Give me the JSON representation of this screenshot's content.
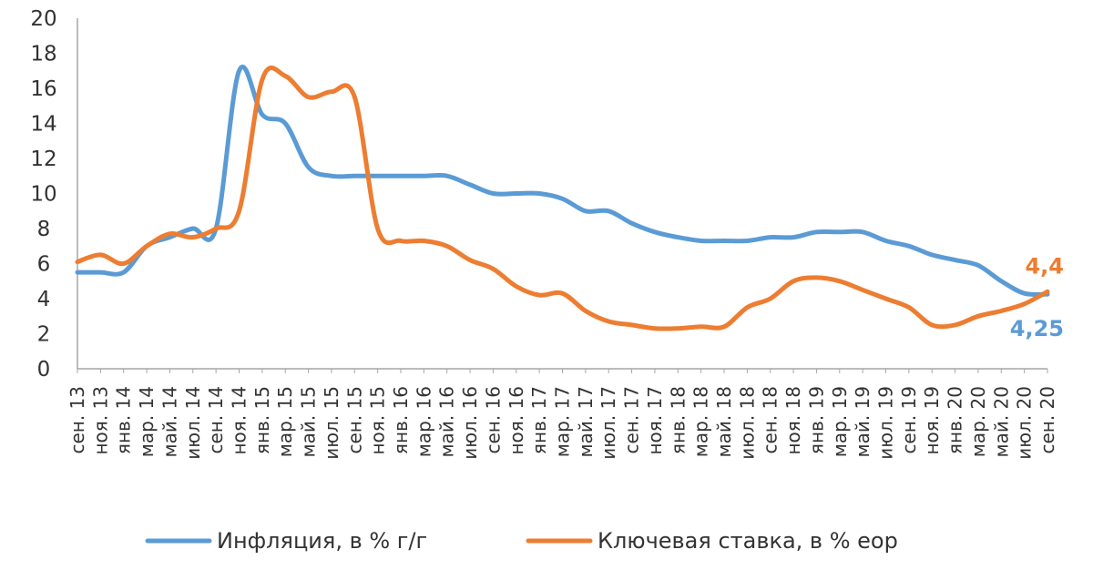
{
  "chart_data": {
    "type": "line",
    "title": "",
    "xlabel": "",
    "ylabel": "",
    "ylim": [
      0,
      20
    ],
    "yticks": [
      "0",
      "2",
      "4",
      "6",
      "8",
      "10",
      "12",
      "14",
      "16",
      "18",
      "20"
    ],
    "grid": false,
    "legend_position": "bottom",
    "x_labels": [
      "сен. 13",
      "ноя. 13",
      "янв. 14",
      "мар. 14",
      "май. 14",
      "июл. 14",
      "сен. 14",
      "ноя. 14",
      "янв. 15",
      "мар. 15",
      "май. 15",
      "июл. 15",
      "сен. 15",
      "ноя. 15",
      "янв. 16",
      "мар. 16",
      "май. 16",
      "июл. 16",
      "сен. 16",
      "ноя. 16",
      "янв. 17",
      "мар. 17",
      "май. 17",
      "июл. 17",
      "сен. 17",
      "ноя. 17",
      "янв. 18",
      "мар. 18",
      "май. 18",
      "июл. 18",
      "сен. 18",
      "ноя. 18",
      "янв. 19",
      "мар. 19",
      "май. 19",
      "июл. 19",
      "сен. 19",
      "ноя. 19",
      "янв. 20",
      "мар. 20",
      "май. 20",
      "июл. 20",
      "сен. 20"
    ],
    "series": [
      {
        "name": "Инфляция, в % г/г",
        "color": "#5b9bd5",
        "values": [
          5.5,
          5.5,
          5.5,
          7.0,
          7.5,
          8.0,
          8.0,
          17.0,
          14.5,
          14.0,
          11.5,
          11.0,
          11.0,
          11.0,
          11.0,
          11.0,
          11.0,
          10.5,
          10.0,
          10.0,
          10.0,
          9.7,
          9.0,
          9.0,
          8.3,
          7.8,
          7.5,
          7.3,
          7.3,
          7.3,
          7.5,
          7.5,
          7.8,
          7.8,
          7.8,
          7.3,
          7.0,
          6.5,
          6.2,
          5.9,
          5.0,
          4.3,
          4.25
        ],
        "end_label": "4,25"
      },
      {
        "name": "Ключевая ставка, в % еор",
        "color": "#ed7d31",
        "values": [
          6.1,
          6.5,
          6.0,
          7.0,
          7.7,
          7.5,
          8.0,
          9.0,
          16.5,
          16.7,
          15.5,
          15.8,
          15.5,
          8.0,
          7.3,
          7.3,
          7.0,
          6.2,
          5.7,
          4.7,
          4.2,
          4.3,
          3.3,
          2.7,
          2.5,
          2.3,
          2.3,
          2.4,
          2.4,
          3.5,
          4.0,
          5.0,
          5.2,
          5.0,
          4.5,
          4.0,
          3.5,
          2.5,
          2.5,
          3.0,
          3.3,
          3.7,
          4.4
        ],
        "end_label": "4,4"
      }
    ]
  }
}
